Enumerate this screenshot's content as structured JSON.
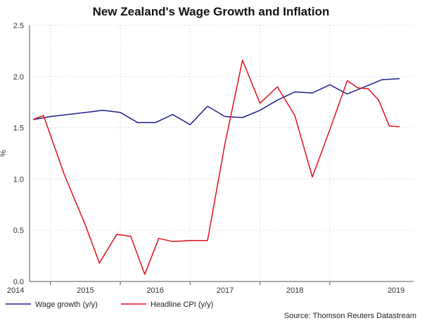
{
  "chart_data": {
    "type": "line",
    "title": "New Zealand's Wage Growth and Inflation",
    "ylabel": "%",
    "xlabel": "",
    "ylim": [
      0,
      2.5
    ],
    "yticks": [
      "0.0",
      "0.5",
      "1.0",
      "1.5",
      "2.0",
      "2.5"
    ],
    "xlim": [
      2013.7,
      2019.2
    ],
    "xticks": [
      "2014",
      "2015",
      "2016",
      "2017",
      "2018",
      "2019"
    ],
    "grid": true,
    "legend_position": "bottom-left",
    "source": "Source: Thomson Reuters Datastream",
    "series": [
      {
        "name": "Wage growth (y/y)",
        "color": "#1f1f8f",
        "x": [
          2013.75,
          2014.0,
          2014.75,
          2015.0,
          2015.25,
          2015.5,
          2015.75,
          2016.0,
          2016.25,
          2016.5,
          2016.75,
          2017.0,
          2017.25,
          2017.5,
          2017.75,
          2018.0,
          2018.25,
          2018.5,
          2018.75,
          2019.0
        ],
        "values": [
          1.58,
          1.61,
          1.67,
          1.65,
          1.55,
          1.55,
          1.63,
          1.53,
          1.71,
          1.61,
          1.6,
          1.67,
          1.77,
          1.85,
          1.84,
          1.92,
          1.83,
          1.9,
          1.97,
          1.98
        ]
      },
      {
        "name": "Headline CPI (y/y)",
        "color": "#e0101c",
        "x": [
          2013.75,
          2013.9,
          2014.2,
          2014.5,
          2014.7,
          2014.95,
          2015.15,
          2015.35,
          2015.55,
          2015.75,
          2016.0,
          2016.25,
          2016.5,
          2016.75,
          2017.0,
          2017.25,
          2017.5,
          2017.75,
          2018.0,
          2018.25,
          2018.4,
          2018.55,
          2018.7,
          2018.85,
          2019.0
        ],
        "values": [
          1.58,
          1.62,
          1.04,
          0.55,
          0.18,
          0.46,
          0.44,
          0.07,
          0.42,
          0.39,
          0.4,
          0.4,
          1.35,
          2.16,
          1.74,
          1.9,
          1.62,
          1.02,
          1.48,
          1.96,
          1.89,
          1.88,
          1.77,
          1.52,
          1.51
        ]
      }
    ]
  }
}
